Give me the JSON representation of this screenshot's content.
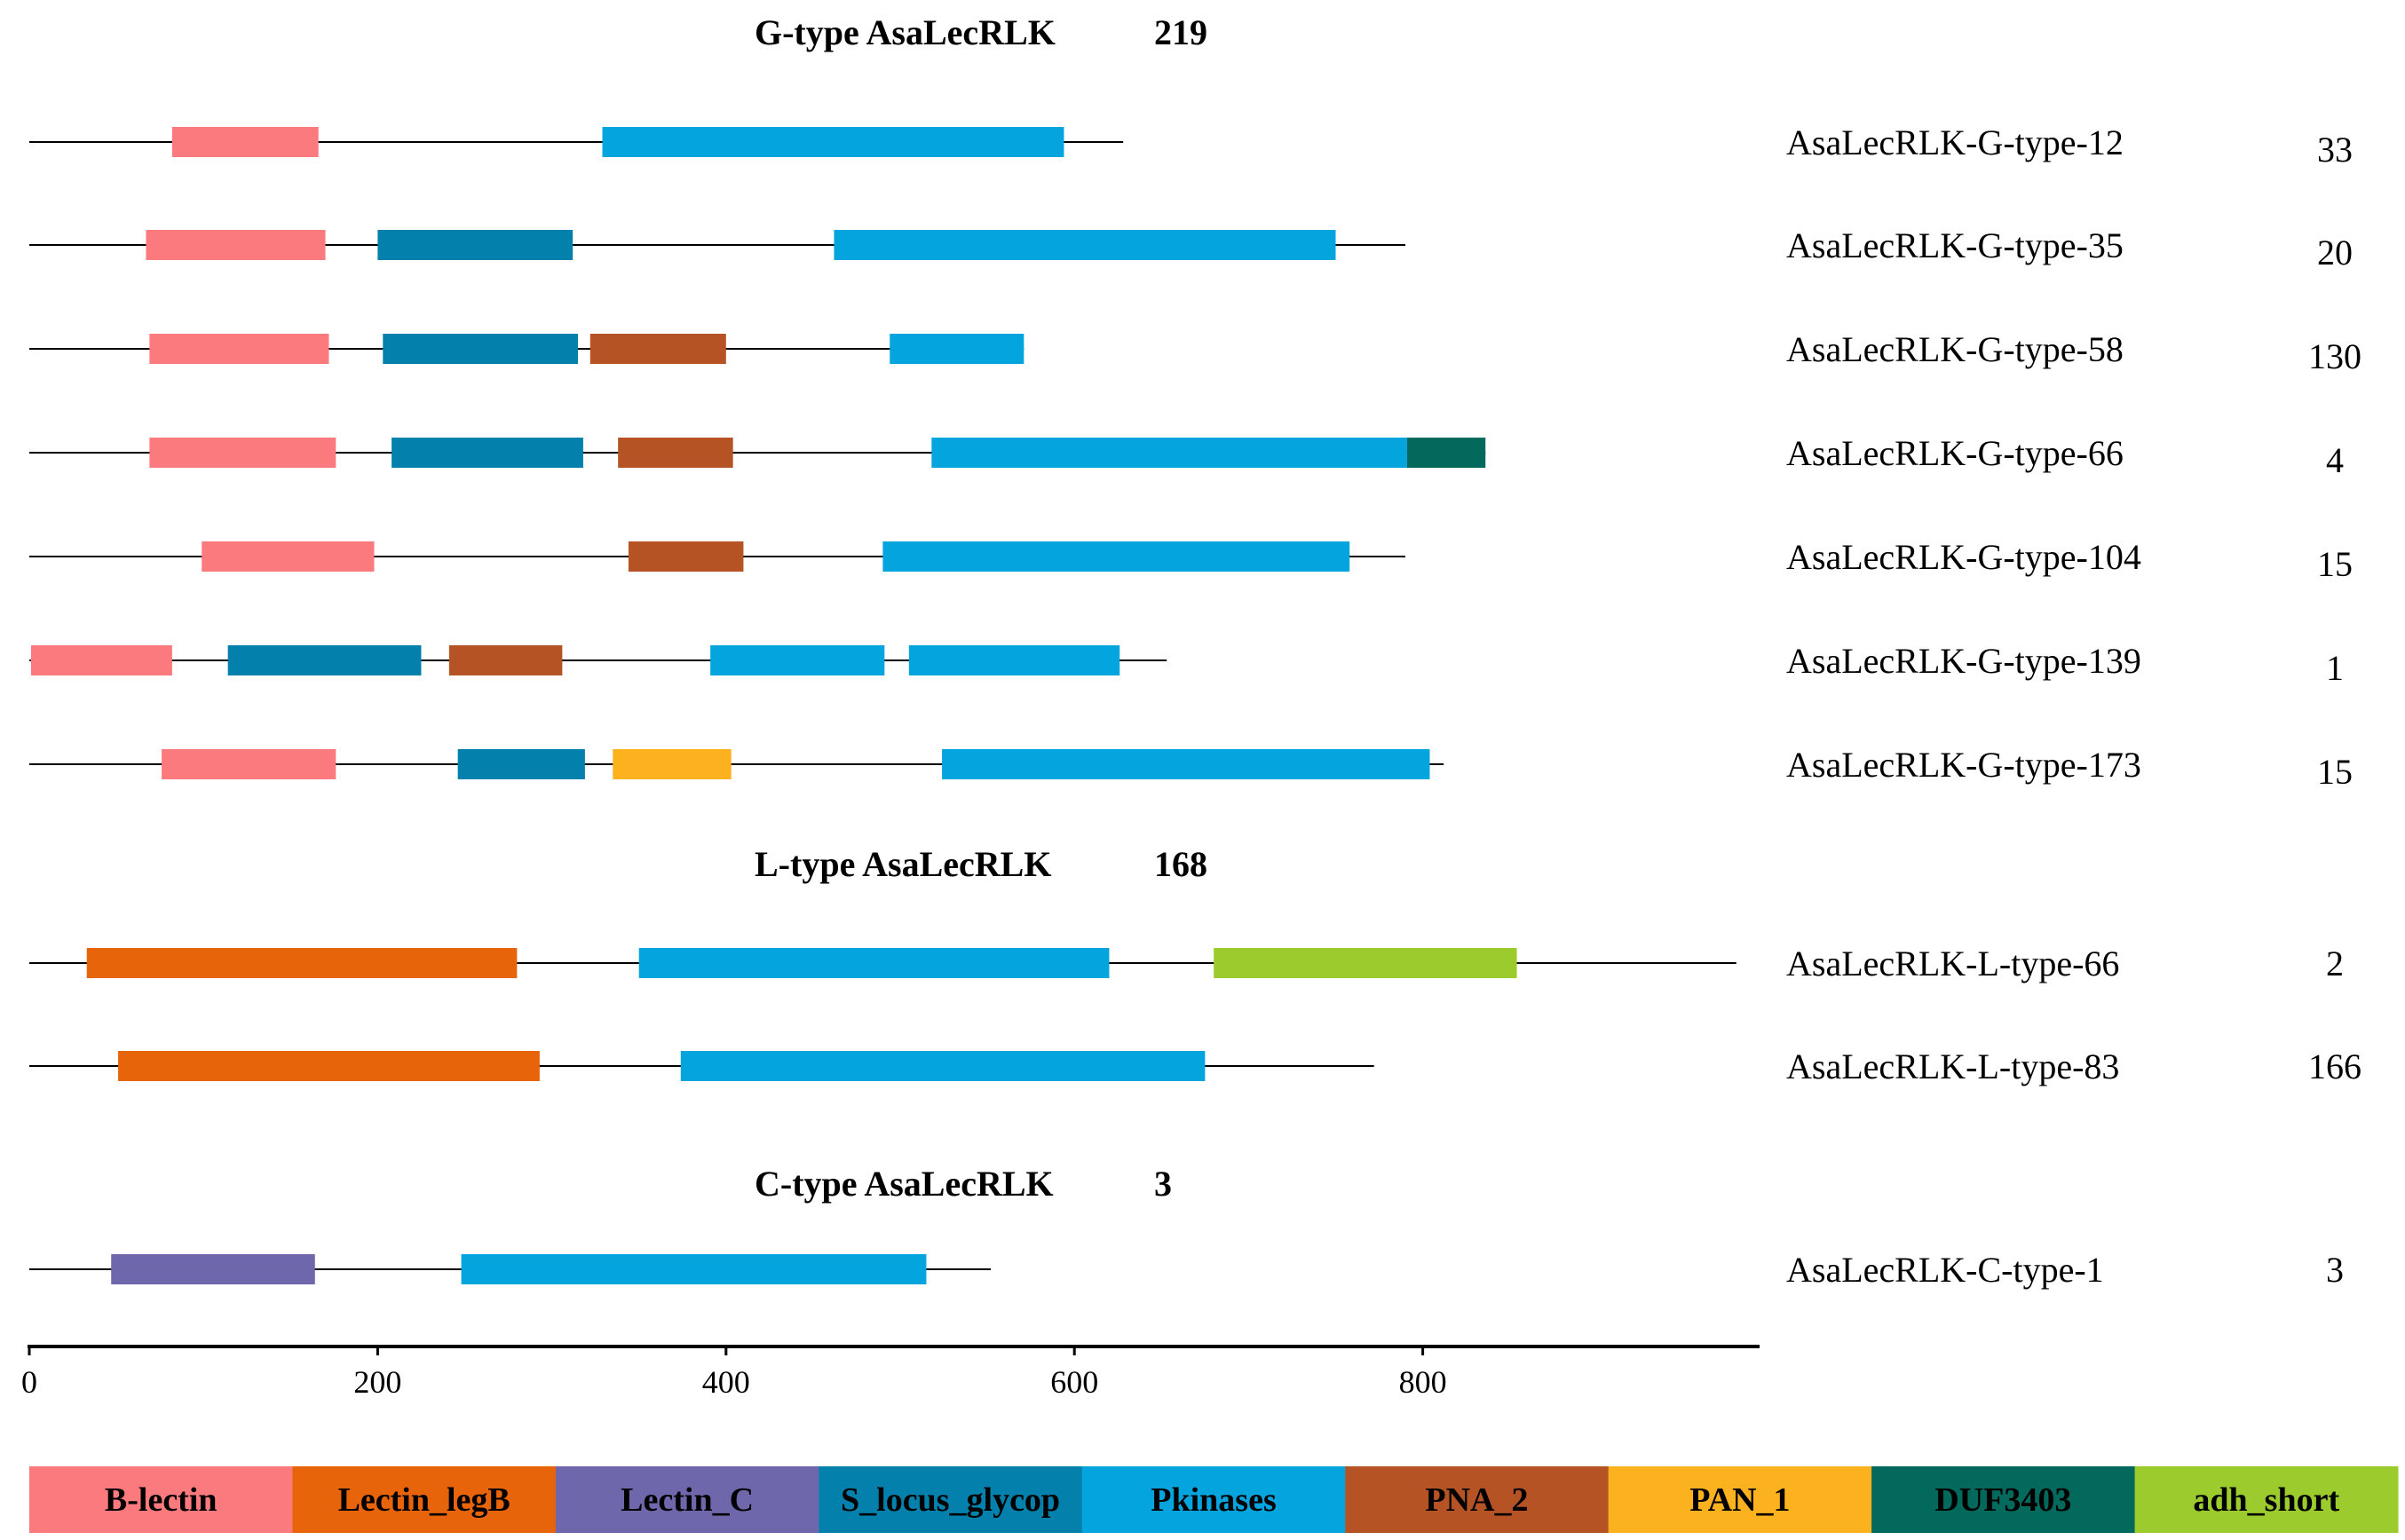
{
  "domains": [
    {
      "name": "B-lectin",
      "color": "#FA7A7D"
    },
    {
      "name": "Lectin_legB",
      "color": "#E8640B"
    },
    {
      "name": "Lectin_C",
      "color": "#6F67AC"
    },
    {
      "name": "S_locus_glycop",
      "color": "#0380AB"
    },
    {
      "name": "Pkinases",
      "color": "#04A4DE"
    },
    {
      "name": "PNA_2",
      "color": "#B55325"
    },
    {
      "name": "PAN_1",
      "color": "#FCB11F"
    },
    {
      "name": "DUF3403",
      "color": "#03695D"
    },
    {
      "name": "adh_short",
      "color": "#9BCB2D"
    }
  ],
  "groups": [
    {
      "title": "G-type AsaLecRLK",
      "total": "219",
      "proteins": [
        {
          "name": "AsaLecRLK-G-type-12",
          "count": "33",
          "length": 628,
          "domains": [
            {
              "type": "B-lectin",
              "start": 82,
              "end": 166
            },
            {
              "type": "Pkinases",
              "start": 329,
              "end": 594
            }
          ]
        },
        {
          "name": "AsaLecRLK-G-type-35",
          "count": "20",
          "length": 790,
          "domains": [
            {
              "type": "B-lectin",
              "start": 67,
              "end": 170
            },
            {
              "type": "S_locus_glycop",
              "start": 200,
              "end": 312
            },
            {
              "type": "Pkinases",
              "start": 462,
              "end": 750
            }
          ]
        },
        {
          "name": "AsaLecRLK-G-type-58",
          "count": "130",
          "length": 571,
          "domains": [
            {
              "type": "B-lectin",
              "start": 69,
              "end": 172
            },
            {
              "type": "S_locus_glycop",
              "start": 203,
              "end": 315
            },
            {
              "type": "PNA_2",
              "start": 322,
              "end": 400
            },
            {
              "type": "Pkinases",
              "start": 494,
              "end": 571
            }
          ]
        },
        {
          "name": "AsaLecRLK-G-type-66",
          "count": "4",
          "length": 836,
          "domains": [
            {
              "type": "B-lectin",
              "start": 69,
              "end": 176
            },
            {
              "type": "S_locus_glycop",
              "start": 208,
              "end": 318
            },
            {
              "type": "PNA_2",
              "start": 338,
              "end": 404
            },
            {
              "type": "Pkinases",
              "start": 518,
              "end": 791
            },
            {
              "type": "DUF3403",
              "start": 791,
              "end": 836
            }
          ]
        },
        {
          "name": "AsaLecRLK-G-type-104",
          "count": "15",
          "length": 790,
          "domains": [
            {
              "type": "B-lectin",
              "start": 99,
              "end": 198
            },
            {
              "type": "PNA_2",
              "start": 344,
              "end": 410
            },
            {
              "type": "Pkinases",
              "start": 490,
              "end": 758
            }
          ]
        },
        {
          "name": "AsaLecRLK-G-type-139",
          "count": "1",
          "length": 653,
          "domains": [
            {
              "type": "B-lectin",
              "start": 1,
              "end": 82
            },
            {
              "type": "S_locus_glycop",
              "start": 114,
              "end": 225
            },
            {
              "type": "PNA_2",
              "start": 241,
              "end": 306
            },
            {
              "type": "Pkinases",
              "start": 391,
              "end": 491
            },
            {
              "type": "Pkinases",
              "start": 505,
              "end": 626
            }
          ]
        },
        {
          "name": "AsaLecRLK-G-type-173",
          "count": "15",
          "length": 812,
          "domains": [
            {
              "type": "B-lectin",
              "start": 76,
              "end": 176
            },
            {
              "type": "S_locus_glycop",
              "start": 246,
              "end": 319
            },
            {
              "type": "PAN_1",
              "start": 335,
              "end": 403
            },
            {
              "type": "Pkinases",
              "start": 524,
              "end": 804
            }
          ]
        }
      ]
    },
    {
      "title": "L-type AsaLecRLK",
      "total": "168",
      "proteins": [
        {
          "name": "AsaLecRLK-L-type-66",
          "count": "2",
          "length": 980,
          "domains": [
            {
              "type": "Lectin_legB",
              "start": 33,
              "end": 280
            },
            {
              "type": "Pkinases",
              "start": 350,
              "end": 620
            },
            {
              "type": "adh_short",
              "start": 680,
              "end": 854
            }
          ]
        },
        {
          "name": "AsaLecRLK-L-type-83",
          "count": "166",
          "length": 772,
          "domains": [
            {
              "type": "Lectin_legB",
              "start": 51,
              "end": 293
            },
            {
              "type": "Pkinases",
              "start": 374,
              "end": 675
            }
          ]
        }
      ]
    },
    {
      "title": "C-type AsaLecRLK",
      "total": "3",
      "proteins": [
        {
          "name": "AsaLecRLK-C-type-1",
          "count": "3",
          "length": 552,
          "domains": [
            {
              "type": "Lectin_C",
              "start": 47,
              "end": 164
            },
            {
              "type": "Pkinases",
              "start": 248,
              "end": 515
            }
          ]
        }
      ]
    }
  ],
  "axis": {
    "min": 0,
    "max": 990,
    "ticks": [
      "0",
      "200",
      "400",
      "600",
      "800"
    ]
  }
}
